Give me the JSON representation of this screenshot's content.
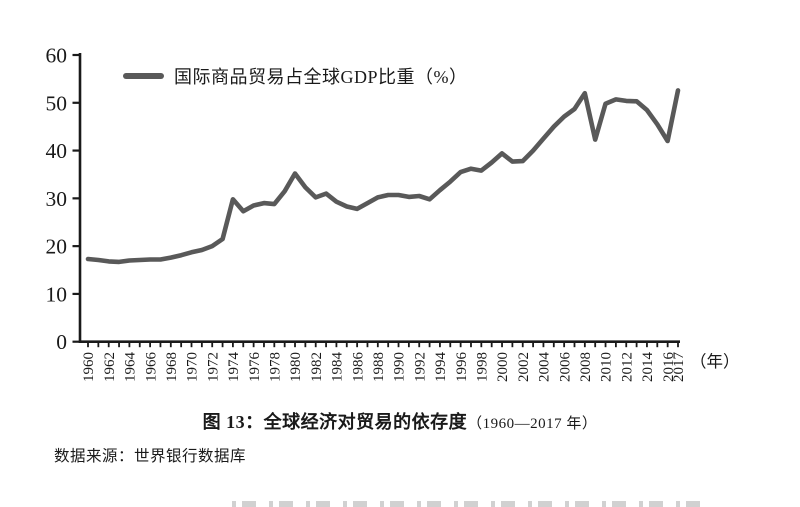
{
  "chart_data": {
    "type": "line",
    "title": "图13：全球经济对贸易的依存度（1960—2017年）",
    "legend": [
      "国际商品贸易占全球GDP比重（%）"
    ],
    "legend_position": "top-left",
    "grid": false,
    "line_color": "#595959",
    "xlabel": "（年）",
    "ylabel": "",
    "ylim": [
      0,
      60
    ],
    "yticks": [
      0,
      10,
      20,
      30,
      40,
      50,
      60
    ],
    "xtick_labels": [
      "1960",
      "1962",
      "1964",
      "1966",
      "1968",
      "1970",
      "1972",
      "1974",
      "1976",
      "1978",
      "1980",
      "1982",
      "1984",
      "1986",
      "1988",
      "1990",
      "1992",
      "1994",
      "1996",
      "1998",
      "2000",
      "2002",
      "2004",
      "2006",
      "2008",
      "2010",
      "2012",
      "2014",
      "2016",
      "2017"
    ],
    "x": [
      1960,
      1961,
      1962,
      1963,
      1964,
      1965,
      1966,
      1967,
      1968,
      1969,
      1970,
      1971,
      1972,
      1973,
      1974,
      1975,
      1976,
      1977,
      1978,
      1979,
      1980,
      1981,
      1982,
      1983,
      1984,
      1985,
      1986,
      1987,
      1988,
      1989,
      1990,
      1991,
      1992,
      1993,
      1994,
      1995,
      1996,
      1997,
      1998,
      1999,
      2000,
      2001,
      2002,
      2003,
      2004,
      2005,
      2006,
      2007,
      2008,
      2009,
      2010,
      2011,
      2012,
      2013,
      2014,
      2015,
      2016,
      2017
    ],
    "series": [
      {
        "name": "国际商品贸易占全球GDP比重（%）",
        "values": [
          17.3,
          17.1,
          16.8,
          16.7,
          17.0,
          17.1,
          17.2,
          17.2,
          17.6,
          18.1,
          18.7,
          19.2,
          20.0,
          21.5,
          29.8,
          27.3,
          28.5,
          29.0,
          28.8,
          31.5,
          35.2,
          32.3,
          30.2,
          31.0,
          29.3,
          28.3,
          27.8,
          29.0,
          30.2,
          30.7,
          30.7,
          30.3,
          30.5,
          29.8,
          31.7,
          33.5,
          35.5,
          36.2,
          35.8,
          37.5,
          39.4,
          37.7,
          37.8,
          40.0,
          42.5,
          45.0,
          47.1,
          48.7,
          52.0,
          42.3,
          49.8,
          50.7,
          50.4,
          50.3,
          48.5,
          45.5,
          42.0,
          52.6
        ]
      }
    ]
  },
  "caption": {
    "title": "图 13：全球经济对贸易的依存度",
    "range": "（1960—2017 年）"
  },
  "source": {
    "text": "数据来源：世界银行数据库"
  }
}
